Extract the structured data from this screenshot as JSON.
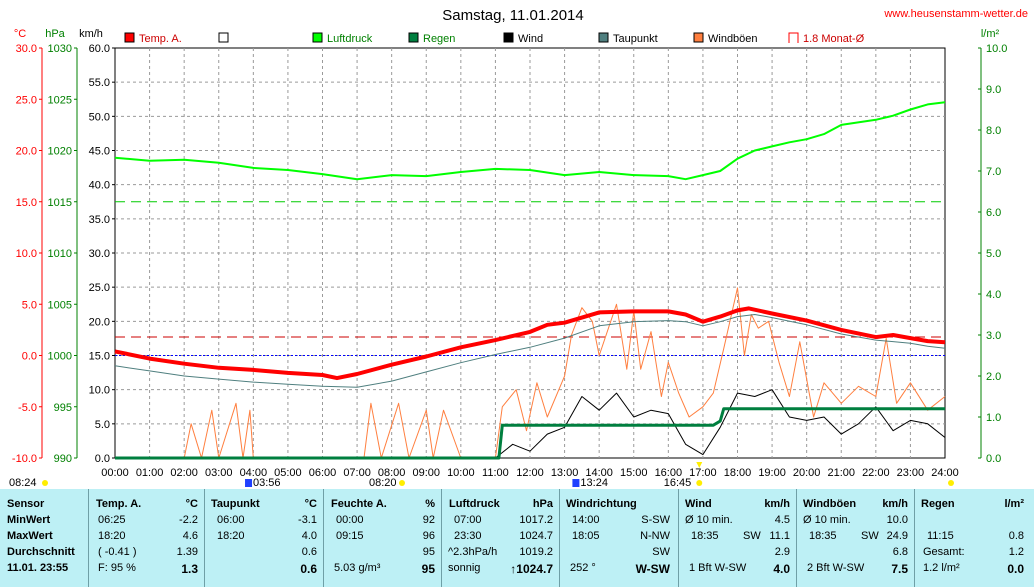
{
  "page": {
    "title": "Samstag, 11.01.2014",
    "website": "www.heusenstamm-wetter.de",
    "axis_units": {
      "temp": "°C",
      "pressure": "hPa",
      "wind": "km/h",
      "rain": "l/m²"
    }
  },
  "legend": [
    {
      "label": "Temp. A.",
      "color": "#ff0000"
    },
    {
      "label": "",
      "color": "#ffffff"
    },
    {
      "label": "Luftdruck",
      "color": "#00ff00"
    },
    {
      "label": "Regen",
      "color": "#007f3f"
    },
    {
      "label": "Wind",
      "color": "#000000"
    },
    {
      "label": "Taupunkt",
      "color": "#4f7f7f"
    },
    {
      "label": "Windböen",
      "color": "#ff7f3f"
    },
    {
      "label": "1.8 Monat-Ø",
      "color": "#ff0000"
    }
  ],
  "chart_data": {
    "type": "line",
    "title": "Samstag, 11.01.2014",
    "x_ticks": [
      "00:00",
      "01:00",
      "02:00",
      "03:00",
      "04:00",
      "05:00",
      "06:00",
      "07:00",
      "08:00",
      "09:00",
      "10:00",
      "11:00",
      "12:00",
      "13:00",
      "14:00",
      "15:00",
      "16:00",
      "17:00",
      "18:00",
      "19:00",
      "20:00",
      "21:00",
      "22:00",
      "23:00",
      "24:00"
    ],
    "axes": {
      "temp": {
        "label": "°C",
        "ticks": [
          "30.0",
          "25.0",
          "20.0",
          "15.0",
          "10.0",
          "5.0",
          "0.0",
          "-5.0",
          "-10.0"
        ],
        "range": [
          -10,
          30
        ]
      },
      "pressure": {
        "label": "hPa",
        "ticks": [
          "1030",
          "1025",
          "1020",
          "1015",
          "1010",
          "1005",
          "1000",
          "995",
          "990"
        ],
        "range": [
          990,
          1030
        ]
      },
      "wind": {
        "label": "km/h",
        "ticks": [
          "60.0",
          "55.0",
          "50.0",
          "45.0",
          "40.0",
          "35.0",
          "30.0",
          "25.0",
          "20.0",
          "15.0",
          "10.0",
          "5.0",
          "0.0"
        ],
        "range": [
          0,
          60
        ]
      },
      "rain": {
        "label": "l/m²",
        "ticks": [
          "10.0",
          "9.0",
          "8.0",
          "7.0",
          "6.0",
          "5.0",
          "4.0",
          "3.0",
          "2.0",
          "1.0",
          "0.0"
        ],
        "range": [
          0,
          10
        ]
      }
    },
    "reference_lines": {
      "temp_zero": 0.0,
      "pressure_1015": 1015,
      "monat_avg_temp": 1.8
    },
    "series": [
      {
        "name": "Temp. A.",
        "axis": "temp",
        "x": [
          0,
          1,
          2,
          3,
          4,
          5,
          6,
          6.42,
          7,
          8,
          9,
          10,
          11,
          12,
          12.5,
          13,
          14,
          15,
          16,
          16.5,
          17,
          17.5,
          18,
          18.33,
          19,
          20,
          21,
          22,
          22.5,
          23,
          23.5,
          24
        ],
        "values": [
          0.4,
          -0.3,
          -0.8,
          -1.2,
          -1.4,
          -1.7,
          -1.9,
          -2.2,
          -1.8,
          -0.9,
          -0.1,
          0.8,
          1.5,
          2.3,
          3.0,
          3.2,
          4.2,
          4.3,
          4.3,
          4.0,
          3.3,
          3.8,
          4.4,
          4.6,
          4.1,
          3.4,
          2.5,
          1.8,
          2.0,
          1.7,
          1.4,
          1.3
        ]
      },
      {
        "name": "Taupunkt",
        "axis": "temp",
        "x": [
          0,
          1,
          2,
          3,
          4,
          5,
          6,
          7,
          8,
          9,
          10,
          11,
          12,
          13,
          14,
          15,
          16,
          16.5,
          17,
          17.5,
          18,
          18.5,
          19,
          20,
          21,
          22,
          23,
          23.5,
          24
        ],
        "values": [
          -1.0,
          -1.5,
          -2.0,
          -2.3,
          -2.6,
          -2.8,
          -3.0,
          -3.1,
          -2.5,
          -1.6,
          -0.7,
          0.1,
          0.8,
          1.7,
          2.9,
          3.3,
          3.4,
          3.3,
          2.9,
          3.3,
          3.8,
          4.0,
          3.7,
          3.0,
          2.1,
          1.5,
          1.2,
          0.9,
          0.7
        ]
      },
      {
        "name": "Luftdruck",
        "axis": "pressure",
        "x": [
          0,
          1,
          2,
          3,
          4,
          5,
          6,
          7,
          8,
          9,
          10,
          11,
          12,
          13,
          14,
          15,
          16,
          16.5,
          17,
          17.5,
          18,
          18.5,
          19,
          19.5,
          20,
          20.5,
          21,
          22,
          22.5,
          23,
          23.5,
          24
        ],
        "values": [
          1019.3,
          1019.0,
          1019.1,
          1018.8,
          1018.3,
          1018.1,
          1017.7,
          1017.2,
          1017.6,
          1017.5,
          1017.9,
          1018.2,
          1018.1,
          1017.6,
          1017.9,
          1017.6,
          1017.5,
          1017.2,
          1017.6,
          1018.0,
          1019.2,
          1020.0,
          1020.4,
          1020.8,
          1021.1,
          1021.6,
          1022.5,
          1023.0,
          1023.4,
          1024.0,
          1024.5,
          1024.7
        ]
      },
      {
        "name": "Wind",
        "axis": "wind",
        "x": [
          11.0,
          11.5,
          12.0,
          12.5,
          13.0,
          13.5,
          14.0,
          14.5,
          15.0,
          15.5,
          16.0,
          16.5,
          17.0,
          17.5,
          18.0,
          18.5,
          19.0,
          19.5,
          20.0,
          20.5,
          21.0,
          21.5,
          22.0,
          22.5,
          23.0,
          23.5,
          24.0
        ],
        "values": [
          0.0,
          2.0,
          1.0,
          3.5,
          4.5,
          9.0,
          7.0,
          9.5,
          6.0,
          7.0,
          6.5,
          2.0,
          0.5,
          4.5,
          9.5,
          9.0,
          10.0,
          6.0,
          5.5,
          6.0,
          3.5,
          5.0,
          7.5,
          4.0,
          5.5,
          5.0,
          3.0
        ]
      },
      {
        "name": "Windböen",
        "axis": "wind",
        "x": [
          2.0,
          2.2,
          2.5,
          2.8,
          3.0,
          3.5,
          3.7,
          3.9,
          4.0,
          4.2,
          7.2,
          7.4,
          7.7,
          8.2,
          8.5,
          9.0,
          9.2,
          9.5,
          10.0,
          11.0,
          11.2,
          11.6,
          11.9,
          12.2,
          12.5,
          13.0,
          13.2,
          13.5,
          13.8,
          14.0,
          14.5,
          14.8,
          15.0,
          15.2,
          15.5,
          15.8,
          16.0,
          16.3,
          16.6,
          17.0,
          17.3,
          17.6,
          18.0,
          18.2,
          18.4,
          18.6,
          18.9,
          19.2,
          19.5,
          19.8,
          20.2,
          20.5,
          21.0,
          21.5,
          22.0,
          22.3,
          22.6,
          23.0,
          23.5,
          24.0
        ],
        "values": [
          0.0,
          5.0,
          0.0,
          7.0,
          0.0,
          8.0,
          0.0,
          7.0,
          0.0,
          0.0,
          0.0,
          8.0,
          0.0,
          8.0,
          0.0,
          7.0,
          0.0,
          7.0,
          0.0,
          0.0,
          7.5,
          10.0,
          4.0,
          11.0,
          6.0,
          12.0,
          18.0,
          22.0,
          20.0,
          15.0,
          22.5,
          13.0,
          21.5,
          13.0,
          18.5,
          9.0,
          14.0,
          9.5,
          6.0,
          7.5,
          9.5,
          16.0,
          24.9,
          15.0,
          21.0,
          19.0,
          20.0,
          14.0,
          9.0,
          17.0,
          6.0,
          11.0,
          8.0,
          10.5,
          9.0,
          17.5,
          8.0,
          11.0,
          7.0,
          9.0
        ]
      },
      {
        "name": "Regen",
        "axis": "rain",
        "x": [
          0,
          11.1,
          11.2,
          15,
          16,
          17,
          17.3,
          17.5,
          17.6,
          18,
          19,
          20,
          21,
          22,
          23,
          24
        ],
        "values": [
          0,
          0,
          0.8,
          0.8,
          0.8,
          0.8,
          0.8,
          0.9,
          1.2,
          1.2,
          1.2,
          1.2,
          1.2,
          1.2,
          1.2,
          1.2
        ]
      }
    ]
  },
  "time_marks": {
    "day_start": "08:24",
    "sunrise": "03:56",
    "sunrise_label": "08:20",
    "solar_noon": "13:24",
    "sunset": "16:45",
    "day_end": "24:00"
  },
  "table": {
    "sensor": {
      "header": "Sensor",
      "rows": [
        "MinWert",
        "MaxWert",
        "Durchschnitt",
        "11.01. 23:55"
      ]
    },
    "temp": {
      "header": "Temp. A.",
      "unit": "°C",
      "rows": [
        [
          "06:25",
          "-2.2"
        ],
        [
          "18:20",
          "4.6"
        ],
        [
          "( -0.41 )",
          "1.39"
        ],
        [
          "F: 95 %",
          "1.3"
        ]
      ]
    },
    "taupunkt": {
      "header": "Taupunkt",
      "unit": "°C",
      "rows": [
        [
          "06:00",
          "-3.1"
        ],
        [
          "18:20",
          "4.0"
        ],
        [
          "",
          "0.6"
        ],
        [
          "",
          "0.6"
        ]
      ]
    },
    "feuchte": {
      "header": "Feuchte A.",
      "unit": "%",
      "rows": [
        [
          "00:00",
          "92"
        ],
        [
          "09:15",
          "96"
        ],
        [
          "",
          "95"
        ],
        [
          "5.03 g/m³",
          "95"
        ]
      ]
    },
    "luftdruck": {
      "header": "Luftdruck",
      "unit": "hPa",
      "rows": [
        [
          "07:00",
          "1017.2"
        ],
        [
          "23:30",
          "1024.7"
        ],
        [
          "^2.3hPa/h",
          "1019.2"
        ],
        [
          "sonnig",
          "↑1024.7"
        ]
      ]
    },
    "windrichtung": {
      "header": "Windrichtung",
      "rows": [
        [
          "14:00",
          "S-SW"
        ],
        [
          "18:05",
          "N-NW"
        ],
        [
          "",
          "SW"
        ],
        [
          "252 °",
          "W-SW"
        ]
      ]
    },
    "wind": {
      "header": "Wind",
      "unit": "km/h",
      "rows": [
        [
          "Ø 10 min.",
          "",
          "4.5"
        ],
        [
          "18:35",
          "SW",
          "11.1"
        ],
        [
          "",
          "",
          "2.9"
        ],
        [
          "1 Bft W-SW",
          "",
          "4.0"
        ]
      ]
    },
    "windboeen": {
      "header": "Windböen",
      "unit": "km/h",
      "rows": [
        [
          "Ø 10 min.",
          "",
          "10.0"
        ],
        [
          "18:35",
          "SW",
          "24.9"
        ],
        [
          "",
          "",
          "6.8"
        ],
        [
          "2 Bft W-SW",
          "",
          "7.5"
        ]
      ]
    },
    "regen": {
      "header": "Regen",
      "unit": "l/m²",
      "rows": [
        [
          "",
          ""
        ],
        [
          "11:15",
          "0.8"
        ],
        [
          "Gesamt:",
          "1.2"
        ],
        [
          "1.2 l/m²",
          "0.0"
        ]
      ]
    }
  }
}
